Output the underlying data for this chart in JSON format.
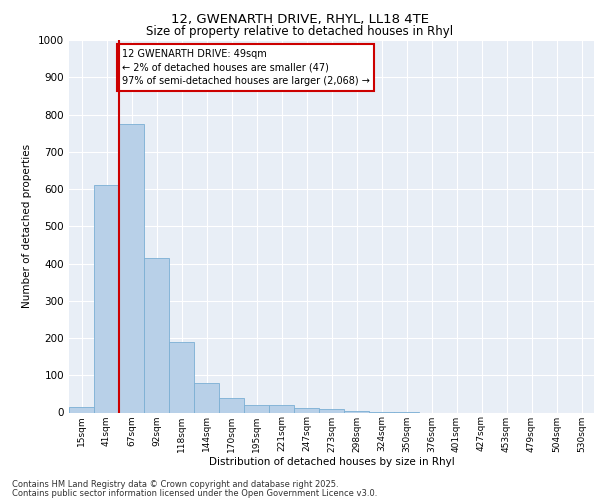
{
  "title_line1": "12, GWENARTH DRIVE, RHYL, LL18 4TE",
  "title_line2": "Size of property relative to detached houses in Rhyl",
  "xlabel": "Distribution of detached houses by size in Rhyl",
  "ylabel": "Number of detached properties",
  "bar_color": "#b8d0e8",
  "bar_edge_color": "#7bafd4",
  "background_color": "#e8eef6",
  "grid_color": "#ffffff",
  "categories": [
    "15sqm",
    "41sqm",
    "67sqm",
    "92sqm",
    "118sqm",
    "144sqm",
    "170sqm",
    "195sqm",
    "221sqm",
    "247sqm",
    "273sqm",
    "298sqm",
    "324sqm",
    "350sqm",
    "376sqm",
    "401sqm",
    "427sqm",
    "453sqm",
    "479sqm",
    "504sqm",
    "530sqm"
  ],
  "values": [
    15,
    610,
    775,
    415,
    190,
    78,
    40,
    20,
    20,
    12,
    10,
    4,
    2,
    1,
    0,
    0,
    0,
    0,
    0,
    0,
    0
  ],
  "ylim": [
    0,
    1000
  ],
  "yticks": [
    0,
    100,
    200,
    300,
    400,
    500,
    600,
    700,
    800,
    900,
    1000
  ],
  "red_line_x": 1.5,
  "annotation_text": "12 GWENARTH DRIVE: 49sqm\n← 2% of detached houses are smaller (47)\n97% of semi-detached houses are larger (2,068) →",
  "annotation_box_color": "#ffffff",
  "annotation_box_edge_color": "#cc0000",
  "footer_line1": "Contains HM Land Registry data © Crown copyright and database right 2025.",
  "footer_line2": "Contains public sector information licensed under the Open Government Licence v3.0."
}
